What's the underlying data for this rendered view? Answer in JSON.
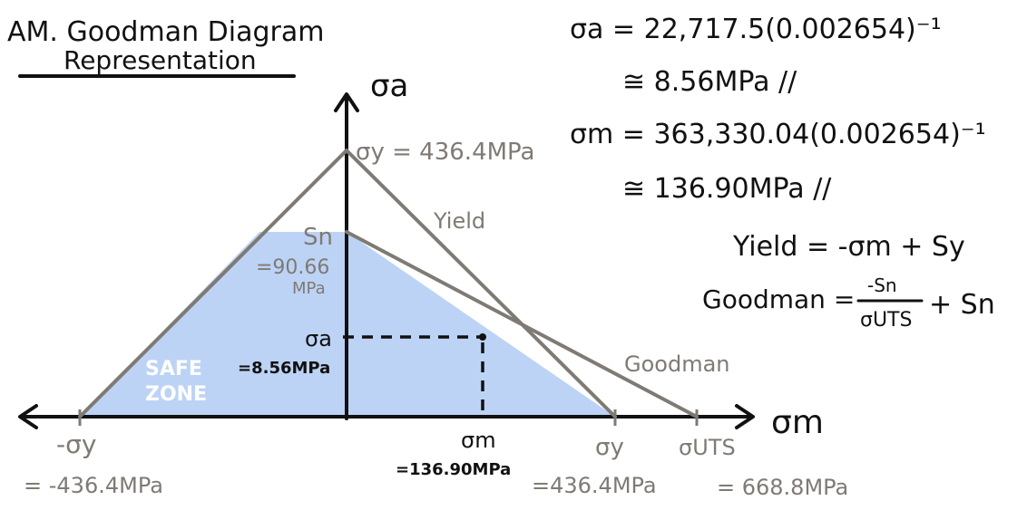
{
  "title": {
    "line1": "AM. Goodman Diagram",
    "line2": "Representation"
  },
  "axes": {
    "y_label": "σa",
    "x_label": "σm"
  },
  "labels": {
    "sy_top": "σy = 436.4MPa",
    "yield_line": "Yield",
    "goodman_line": "Goodman",
    "sn": "Sn",
    "sn_value_1": "=90.66",
    "sn_value_2": "MPa",
    "sigma_a_point": "σa",
    "sigma_a_value": "=8.56MPa",
    "safe_1": "SAFE",
    "safe_2": "ZONE",
    "neg_sy": "-σy",
    "neg_sy_value": "= -436.4MPa",
    "sigma_m_point": "σm",
    "sigma_m_value": "=136.90MPa",
    "sy_right": "σy",
    "sy_right_value": "=436.4MPa",
    "suts": "σUTS",
    "suts_value": "= 668.8MPa"
  },
  "equations": {
    "sa_line1": "σa = 22,717.5(0.002654)⁻¹",
    "sa_line2": "≅ 8.56MPa //",
    "sm_line1": "σm = 363,330.04(0.002654)⁻¹",
    "sm_line2": "≅ 136.90MPa //",
    "yield_eq": "Yield = -σm + Sy",
    "goodman_lhs": "Goodman =",
    "goodman_num": "-Sn",
    "goodman_den": "σUTS",
    "goodman_rhs": "+ Sn"
  },
  "colors": {
    "ink": "#111111",
    "gray_line": "#7f7a74",
    "safe_fill": "#bcd3f5"
  }
}
